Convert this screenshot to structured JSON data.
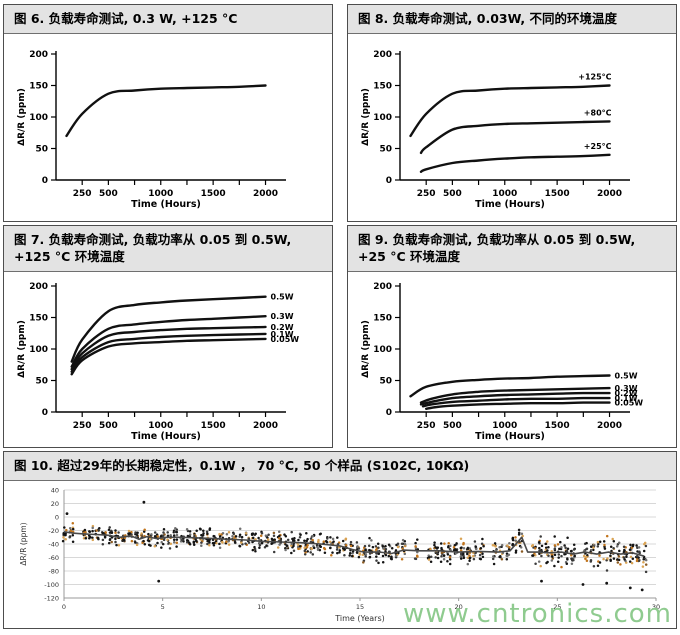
{
  "page": {
    "watermark": "www.cntronics.com",
    "watermark_color": "#8fcb8f",
    "background": "#ffffff",
    "panel_header_bg": "#e3e3e3",
    "curve_color": "#111111"
  },
  "panels": [
    {
      "id": "fig6",
      "title": "图 6. 负载寿命测试, 0.3 W, +125 °C"
    },
    {
      "id": "fig8",
      "title": "图 8.  负载寿命测试, 0.03W, 不同的环境温度"
    },
    {
      "id": "fig7",
      "title": "图 7. 负载寿命测试, 负载功率从 0.05 到 0.5W, +125 °C 环境温度"
    },
    {
      "id": "fig9",
      "title": "图 9.  负载寿命测试, 负载功率从 0.05 到 0.5W, +25 °C 环境温度"
    },
    {
      "id": "fig10",
      "title": "图 10. 超过29年的长期稳定性，0.1W ， 70 °C, 50 个样品 (S102C, 10KΩ)"
    }
  ],
  "chart_data": [
    {
      "id": "fig6",
      "type": "line",
      "title": "负载寿命测试, 0.3 W, +125 °C",
      "xlabel": "Time (Hours)",
      "ylabel": "ΔR/R (ppm)",
      "xlim": [
        0,
        2100
      ],
      "ylim": [
        0,
        200
      ],
      "yticks": [
        0,
        50,
        100,
        150,
        200
      ],
      "xticks": [
        250,
        500,
        750,
        1000,
        1250,
        1500,
        1750,
        2000
      ],
      "xtick_labels": {
        "250": "250",
        "500": "500",
        "1000": "1000",
        "1500": "1500",
        "2000": "2000"
      },
      "label_pos": "none",
      "series": [
        {
          "name": "0.3W @ +125°C",
          "label": "",
          "x": [
            100,
            250,
            500,
            750,
            1000,
            1250,
            1500,
            1750,
            2000
          ],
          "y": [
            70,
            105,
            137,
            142,
            145,
            146,
            147,
            148,
            150
          ]
        }
      ]
    },
    {
      "id": "fig8",
      "type": "line",
      "title": "负载寿命测试, 0.03W, 不同的环境温度",
      "xlabel": "Time (Hours)",
      "ylabel": "ΔR/R (ppm)",
      "xlim": [
        0,
        2100
      ],
      "ylim": [
        0,
        200
      ],
      "yticks": [
        0,
        50,
        100,
        150,
        200
      ],
      "xticks": [
        250,
        500,
        750,
        1000,
        1250,
        1500,
        1750,
        2000
      ],
      "xtick_labels": {
        "250": "250",
        "500": "500",
        "1000": "1000",
        "1500": "1500",
        "2000": "2000"
      },
      "label_pos": "above-end",
      "series": [
        {
          "name": "+125°C",
          "label": "+125°C",
          "x": [
            100,
            250,
            500,
            750,
            1000,
            1250,
            1500,
            1750,
            2000
          ],
          "y": [
            70,
            105,
            137,
            142,
            145,
            146,
            147,
            148,
            150
          ]
        },
        {
          "name": "+80°C",
          "label": "+80°C",
          "x": [
            200,
            250,
            500,
            750,
            1000,
            1250,
            1500,
            1750,
            2000
          ],
          "y": [
            43,
            52,
            80,
            86,
            89,
            90,
            91,
            92,
            93
          ]
        },
        {
          "name": "+25°C",
          "label": "+25°C",
          "x": [
            200,
            250,
            500,
            750,
            1000,
            1250,
            1500,
            1750,
            2000
          ],
          "y": [
            13,
            17,
            27,
            31,
            34,
            36,
            37,
            38,
            40
          ]
        }
      ]
    },
    {
      "id": "fig7",
      "type": "line",
      "title": "负载寿命测试, 负载功率从 0.05 到 0.5W, +125 °C 环境温度",
      "xlabel": "Time (Hours)",
      "ylabel": "ΔR/R (ppm)",
      "xlim": [
        0,
        2100
      ],
      "ylim": [
        0,
        200
      ],
      "yticks": [
        0,
        50,
        100,
        150,
        200
      ],
      "xticks": [
        250,
        500,
        750,
        1000,
        1250,
        1500,
        1750,
        2000
      ],
      "xtick_labels": {
        "250": "250",
        "500": "500",
        "1000": "1000",
        "1500": "1500",
        "2000": "2000"
      },
      "label_pos": "right",
      "series": [
        {
          "name": "0.5W",
          "label": "0.5W",
          "x": [
            150,
            250,
            500,
            750,
            1000,
            1250,
            1500,
            1750,
            2000
          ],
          "y": [
            80,
            115,
            160,
            170,
            174,
            177,
            179,
            181,
            183
          ]
        },
        {
          "name": "0.3W",
          "label": "0.3W",
          "x": [
            150,
            250,
            500,
            750,
            1000,
            1250,
            1500,
            1750,
            2000
          ],
          "y": [
            72,
            100,
            132,
            139,
            143,
            146,
            148,
            150,
            152
          ]
        },
        {
          "name": "0.2W",
          "label": "0.2W",
          "x": [
            150,
            250,
            500,
            750,
            1000,
            1250,
            1500,
            1750,
            2000
          ],
          "y": [
            68,
            93,
            121,
            127,
            130,
            132,
            133,
            134,
            135
          ]
        },
        {
          "name": "0.1W",
          "label": "0.1W",
          "x": [
            150,
            250,
            500,
            750,
            1000,
            1250,
            1500,
            1750,
            2000
          ],
          "y": [
            64,
            87,
            111,
            116,
            119,
            121,
            122,
            123,
            124
          ]
        },
        {
          "name": "0.05W",
          "label": "0.05W",
          "x": [
            150,
            250,
            500,
            750,
            1000,
            1250,
            1500,
            1750,
            2000
          ],
          "y": [
            60,
            82,
            104,
            109,
            111,
            113,
            114,
            115,
            116
          ]
        }
      ]
    },
    {
      "id": "fig9",
      "type": "line",
      "title": "负载寿命测试, 负载功率从 0.05 到 0.5W, +25 °C 环境温度",
      "xlabel": "Time (Hours)",
      "ylabel": "ΔR/R (ppm)",
      "xlim": [
        0,
        2100
      ],
      "ylim": [
        0,
        200
      ],
      "yticks": [
        0,
        50,
        100,
        150,
        200
      ],
      "xticks": [
        250,
        500,
        750,
        1000,
        1250,
        1500,
        1750,
        2000
      ],
      "xtick_labels": {
        "250": "250",
        "500": "500",
        "1000": "1000",
        "1500": "1500",
        "2000": "2000"
      },
      "label_pos": "right",
      "series": [
        {
          "name": "0.5W",
          "label": "0.5W",
          "x": [
            100,
            250,
            500,
            750,
            1000,
            1250,
            1500,
            1750,
            2000
          ],
          "y": [
            25,
            40,
            48,
            51,
            53,
            54,
            56,
            57,
            58
          ]
        },
        {
          "name": "0.3W",
          "label": "0.3W",
          "x": [
            200,
            300,
            500,
            750,
            1000,
            1250,
            1500,
            1750,
            2000
          ],
          "y": [
            15,
            21,
            28,
            32,
            34,
            35,
            36,
            37,
            38
          ]
        },
        {
          "name": "0.2W",
          "label": "0.2W",
          "x": [
            200,
            300,
            500,
            750,
            1000,
            1250,
            1500,
            1750,
            2000
          ],
          "y": [
            12,
            16,
            22,
            25,
            27,
            28,
            29,
            30,
            30
          ]
        },
        {
          "name": "0.1W",
          "label": "0.1W",
          "x": [
            220,
            300,
            500,
            750,
            1000,
            1250,
            1500,
            1750,
            2000
          ],
          "y": [
            9,
            12,
            16,
            18,
            20,
            21,
            21,
            22,
            22
          ]
        },
        {
          "name": "0.05W",
          "label": "0.05W",
          "x": [
            250,
            350,
            500,
            750,
            1000,
            1250,
            1500,
            1750,
            2000
          ],
          "y": [
            5,
            8,
            10,
            12,
            13,
            14,
            14,
            15,
            15
          ]
        }
      ]
    },
    {
      "id": "fig10",
      "type": "scatter",
      "title": "超过29年的长期稳定性, 0.1W, 70 °C, 50 个样品 (S102C, 10KΩ)",
      "xlabel": "Time (Years)",
      "ylabel": "ΔR/R  (ppm)",
      "xlim": [
        0,
        30
      ],
      "ylim": [
        -120,
        40
      ],
      "yticks": [
        40,
        20,
        0,
        -20,
        -40,
        -60,
        -80,
        -100,
        -120
      ],
      "xticks": [
        0,
        5,
        10,
        15,
        20,
        25,
        30
      ],
      "grid_color": "#d8d8d8",
      "mean_line": {
        "color": "#4a4a4a",
        "x": [
          0,
          0.5,
          1,
          1.6,
          2.2,
          2.8,
          3.4,
          3.8,
          4.2,
          4.7,
          5.2,
          6,
          6.8,
          7.6,
          8.4,
          9.2,
          10,
          11,
          12,
          13,
          14,
          14.6,
          15.2,
          16,
          16.6,
          17.2,
          18,
          19,
          20,
          21,
          22,
          22.6,
          23.2,
          23.5,
          24,
          24.6,
          25.2,
          25.8,
          26.4,
          27,
          27.6,
          28.2,
          28.8,
          29.4
        ],
        "y": [
          -22,
          -24,
          -25,
          -26,
          -27,
          -30,
          -28,
          -33,
          -29,
          -32,
          -30,
          -30,
          -31,
          -32,
          -33,
          -34,
          -36,
          -37,
          -38,
          -40,
          -43,
          -48,
          -52,
          -52,
          -54,
          -49,
          -50,
          -50,
          -52,
          -51,
          -52,
          -50,
          -30,
          -52,
          -52,
          -53,
          -52,
          -55,
          -52,
          -55,
          -52,
          -55,
          -53,
          -58
        ]
      },
      "scatter": {
        "x_start": 0.05,
        "x_end": 29.45,
        "step": 0.33,
        "points_per_column": 13,
        "spread_base": 15,
        "spread_per_year": 0.55,
        "gap_chance": 0.07,
        "seed": 13,
        "colors": [
          "#141414",
          "#3c3c3c",
          "#707070",
          "#c1741c",
          "#daa455",
          "#8a5a22"
        ],
        "color_weights": [
          0.46,
          0.16,
          0.1,
          0.14,
          0.1,
          0.04
        ],
        "outliers": [
          {
            "x": 4.05,
            "y": 22
          },
          {
            "x": 0.15,
            "y": 5
          },
          {
            "x": 4.8,
            "y": -95
          },
          {
            "x": 24.2,
            "y": -95
          },
          {
            "x": 26.3,
            "y": -100
          },
          {
            "x": 27.5,
            "y": -98
          },
          {
            "x": 28.7,
            "y": -105
          },
          {
            "x": 29.3,
            "y": -108
          }
        ]
      }
    }
  ]
}
